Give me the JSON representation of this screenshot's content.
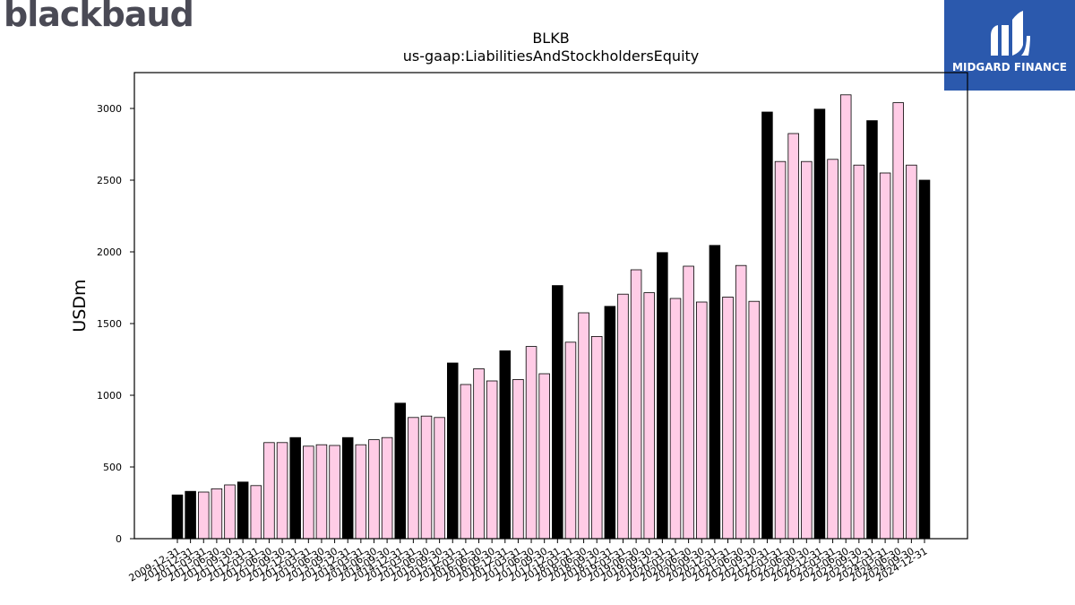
{
  "brand": {
    "logo_text": "blackbaud",
    "badge_text": "MIDGARD FINANCE"
  },
  "colors": {
    "highlight_bar": "#000000",
    "normal_bar": "#ffcce6",
    "bar_edge": "#000000"
  },
  "chart_data": {
    "type": "bar",
    "title": "BLKB",
    "subtitle": "us-gaap:LiabilitiesAndStockholdersEquity",
    "xlabel": "",
    "ylabel": "USDm",
    "ylim": [
      0,
      3250
    ],
    "yticks": [
      0,
      500,
      1000,
      1500,
      2000,
      2500,
      3000
    ],
    "grid": false,
    "categories": [
      "2009-12-31",
      "2010-12-31",
      "2011-03-31",
      "2011-06-30",
      "2011-09-30",
      "2011-12-31",
      "2012-03-31",
      "2012-06-30",
      "2012-09-30",
      "2012-12-31",
      "2013-03-31",
      "2013-06-30",
      "2013-09-30",
      "2013-12-31",
      "2014-03-31",
      "2014-06-30",
      "2014-09-30",
      "2014-12-31",
      "2015-03-31",
      "2015-06-30",
      "2015-09-30",
      "2015-12-31",
      "2016-03-31",
      "2016-06-30",
      "2016-09-30",
      "2016-12-31",
      "2017-03-31",
      "2017-06-30",
      "2017-09-30",
      "2017-12-31",
      "2018-03-31",
      "2018-06-30",
      "2018-09-30",
      "2018-12-31",
      "2019-03-31",
      "2019-06-30",
      "2019-09-30",
      "2019-12-31",
      "2020-03-31",
      "2020-06-30",
      "2020-09-30",
      "2020-12-31",
      "2021-03-31",
      "2021-06-30",
      "2021-09-30",
      "2021-12-31",
      "2022-03-31",
      "2022-06-30",
      "2022-09-30",
      "2022-12-31",
      "2023-03-31",
      "2023-06-30",
      "2023-09-30",
      "2023-12-31",
      "2024-03-31",
      "2024-06-30",
      "2024-09-30",
      "2024-12-31"
    ],
    "values": [
      305,
      330,
      325,
      348,
      375,
      395,
      370,
      670,
      670,
      705,
      645,
      655,
      650,
      705,
      655,
      690,
      705,
      945,
      845,
      855,
      845,
      1225,
      1075,
      1185,
      1100,
      1310,
      1110,
      1340,
      1150,
      1765,
      1370,
      1575,
      1410,
      1620,
      1705,
      1875,
      1715,
      1995,
      1675,
      1900,
      1650,
      2045,
      1685,
      1905,
      1655,
      2975,
      2630,
      2825,
      2630,
      2995,
      2645,
      3095,
      2605,
      2915,
      2550,
      3040,
      2605,
      2500
    ],
    "highlight": [
      true,
      true,
      false,
      false,
      false,
      true,
      false,
      false,
      false,
      true,
      false,
      false,
      false,
      true,
      false,
      false,
      false,
      true,
      false,
      false,
      false,
      true,
      false,
      false,
      false,
      true,
      false,
      false,
      false,
      true,
      false,
      false,
      false,
      true,
      false,
      false,
      false,
      true,
      false,
      false,
      false,
      true,
      false,
      false,
      false,
      true,
      false,
      false,
      false,
      true,
      false,
      false,
      false,
      true,
      false,
      false,
      false,
      true
    ]
  }
}
